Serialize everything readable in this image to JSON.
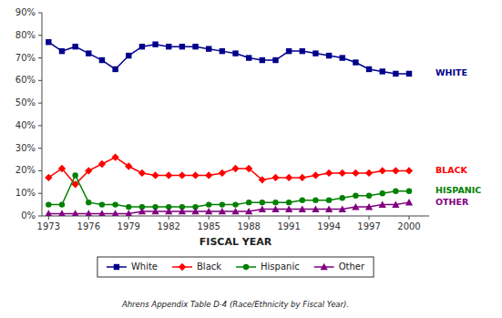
{
  "chart_data": {
    "type": "line",
    "xlabel": "FISCAL YEAR",
    "source": "Ahrens Appendix Table D-4 (Race/Ethnicity by Fiscal Year).",
    "x": [
      1973,
      1974,
      1975,
      1976,
      1977,
      1978,
      1979,
      1980,
      1981,
      1982,
      1983,
      1984,
      1985,
      1986,
      1987,
      1988,
      1989,
      1990,
      1991,
      1992,
      1993,
      1994,
      1995,
      1996,
      1997,
      1998,
      1999,
      2000
    ],
    "series": [
      {
        "name": "White",
        "color": "#00008B",
        "marker": "square",
        "values": [
          77,
          73,
          75,
          72,
          69,
          65,
          71,
          75,
          76,
          75,
          75,
          75,
          74,
          73,
          72,
          70,
          69,
          69,
          73,
          73,
          72,
          71,
          70,
          68,
          65,
          64,
          63,
          63
        ]
      },
      {
        "name": "Black",
        "color": "#FF0000",
        "marker": "diamond",
        "values": [
          17,
          21,
          14,
          20,
          23,
          26,
          22,
          19,
          18,
          18,
          18,
          18,
          18,
          19,
          21,
          21,
          16,
          17,
          17,
          17,
          18,
          19,
          19,
          19,
          19,
          20,
          20,
          20
        ]
      },
      {
        "name": "Hispanic",
        "color": "#008000",
        "marker": "circle",
        "values": [
          5,
          5,
          18,
          6,
          5,
          5,
          4,
          4,
          4,
          4,
          4,
          4,
          5,
          5,
          5,
          6,
          6,
          6,
          6,
          7,
          7,
          7,
          8,
          9,
          9,
          10,
          11,
          11
        ]
      },
      {
        "name": "Other",
        "color": "#800080",
        "marker": "triangle",
        "values": [
          1,
          1,
          1,
          1,
          1,
          1,
          1,
          2,
          2,
          2,
          2,
          2,
          2,
          2,
          2,
          2,
          3,
          3,
          3,
          3,
          3,
          3,
          3,
          4,
          4,
          5,
          5,
          6
        ]
      }
    ],
    "annotations": [
      {
        "text": "WHITE",
        "y": 63,
        "color": "#00008B"
      },
      {
        "text": "BLACK",
        "y": 20,
        "color": "#FF0000"
      },
      {
        "text": "HISPANIC",
        "y": 11,
        "color": "#008000"
      },
      {
        "text": "OTHER",
        "y": 6,
        "color": "#800080"
      }
    ],
    "xlim": [
      1972.5,
      2001.5
    ],
    "xticks": [
      1973,
      1976,
      1979,
      1982,
      1985,
      1988,
      1991,
      1994,
      1997,
      2000
    ],
    "ylim": [
      0,
      90
    ],
    "yticks": [
      {
        "value": 0,
        "label": "0%"
      },
      {
        "value": 10,
        "label": "10%"
      },
      {
        "value": 20,
        "label": "20%"
      },
      {
        "value": 30,
        "label": "30%"
      },
      {
        "value": 40,
        "label": "40%"
      },
      {
        "value": 50,
        "label": "50%"
      },
      {
        "value": 60,
        "label": "60%"
      },
      {
        "value": 70,
        "label": "70%"
      },
      {
        "value": 80,
        "label": "80%"
      },
      {
        "value": 90,
        "label": "90%"
      }
    ],
    "grid": false,
    "legend": "bottom"
  }
}
